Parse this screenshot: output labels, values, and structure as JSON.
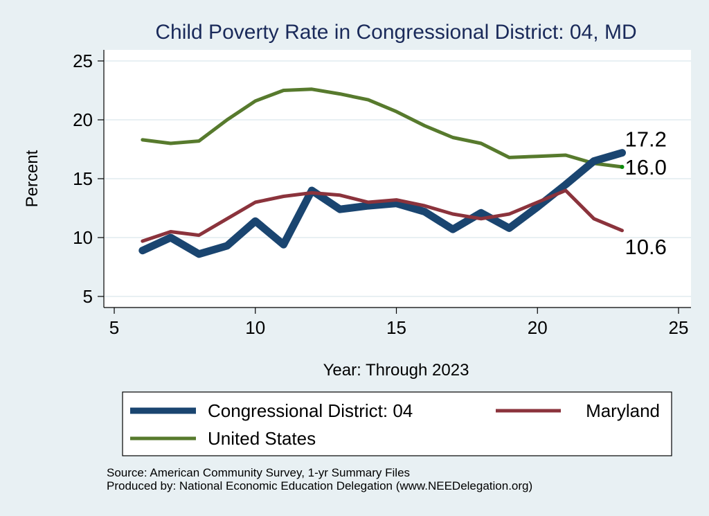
{
  "chart_data": {
    "type": "line",
    "title": "Child Poverty Rate in Congressional District:  04, MD",
    "xlabel": "Year: Through 2023",
    "ylabel": "Percent",
    "xlim": [
      4.5,
      25.5
    ],
    "ylim": [
      4,
      26
    ],
    "xticks": [
      5,
      10,
      15,
      20,
      25
    ],
    "yticks": [
      5,
      10,
      15,
      20,
      25
    ],
    "grid": "horizontal",
    "x": [
      6,
      7,
      8,
      9,
      10,
      11,
      12,
      13,
      14,
      15,
      16,
      17,
      18,
      19,
      20,
      21,
      22,
      23
    ],
    "series": [
      {
        "name": "Congressional District:  04",
        "color": "#1a4570",
        "values": [
          8.9,
          10.0,
          8.6,
          9.3,
          11.4,
          9.4,
          14.0,
          12.4,
          12.7,
          12.9,
          12.2,
          10.7,
          12.1,
          10.8,
          12.6,
          14.5,
          16.5,
          17.2
        ],
        "end_label": "17.2"
      },
      {
        "name": "Maryland",
        "color": "#8b333c",
        "values": [
          9.7,
          10.5,
          10.2,
          11.6,
          13.0,
          13.5,
          13.8,
          13.6,
          13.0,
          13.2,
          12.7,
          12.0,
          11.6,
          12.0,
          13.0,
          14.0,
          11.6,
          10.6
        ],
        "end_label": "10.6"
      },
      {
        "name": "United States",
        "color": "#577a2d",
        "values": [
          18.3,
          18.0,
          18.2,
          20.0,
          21.6,
          22.5,
          22.6,
          22.2,
          21.7,
          20.7,
          19.5,
          18.5,
          18.0,
          16.8,
          16.9,
          17.0,
          16.3,
          16.0
        ],
        "end_label": "16.0"
      }
    ],
    "legend": {
      "placement": "bottom",
      "entries": [
        "Congressional District:  04",
        "Maryland",
        "United States"
      ]
    },
    "notes": [
      "Source: American Community Survey, 1-yr Summary Files",
      "Produced by: National Economic Education Delegation (www.NEEDelegation.org)"
    ]
  }
}
